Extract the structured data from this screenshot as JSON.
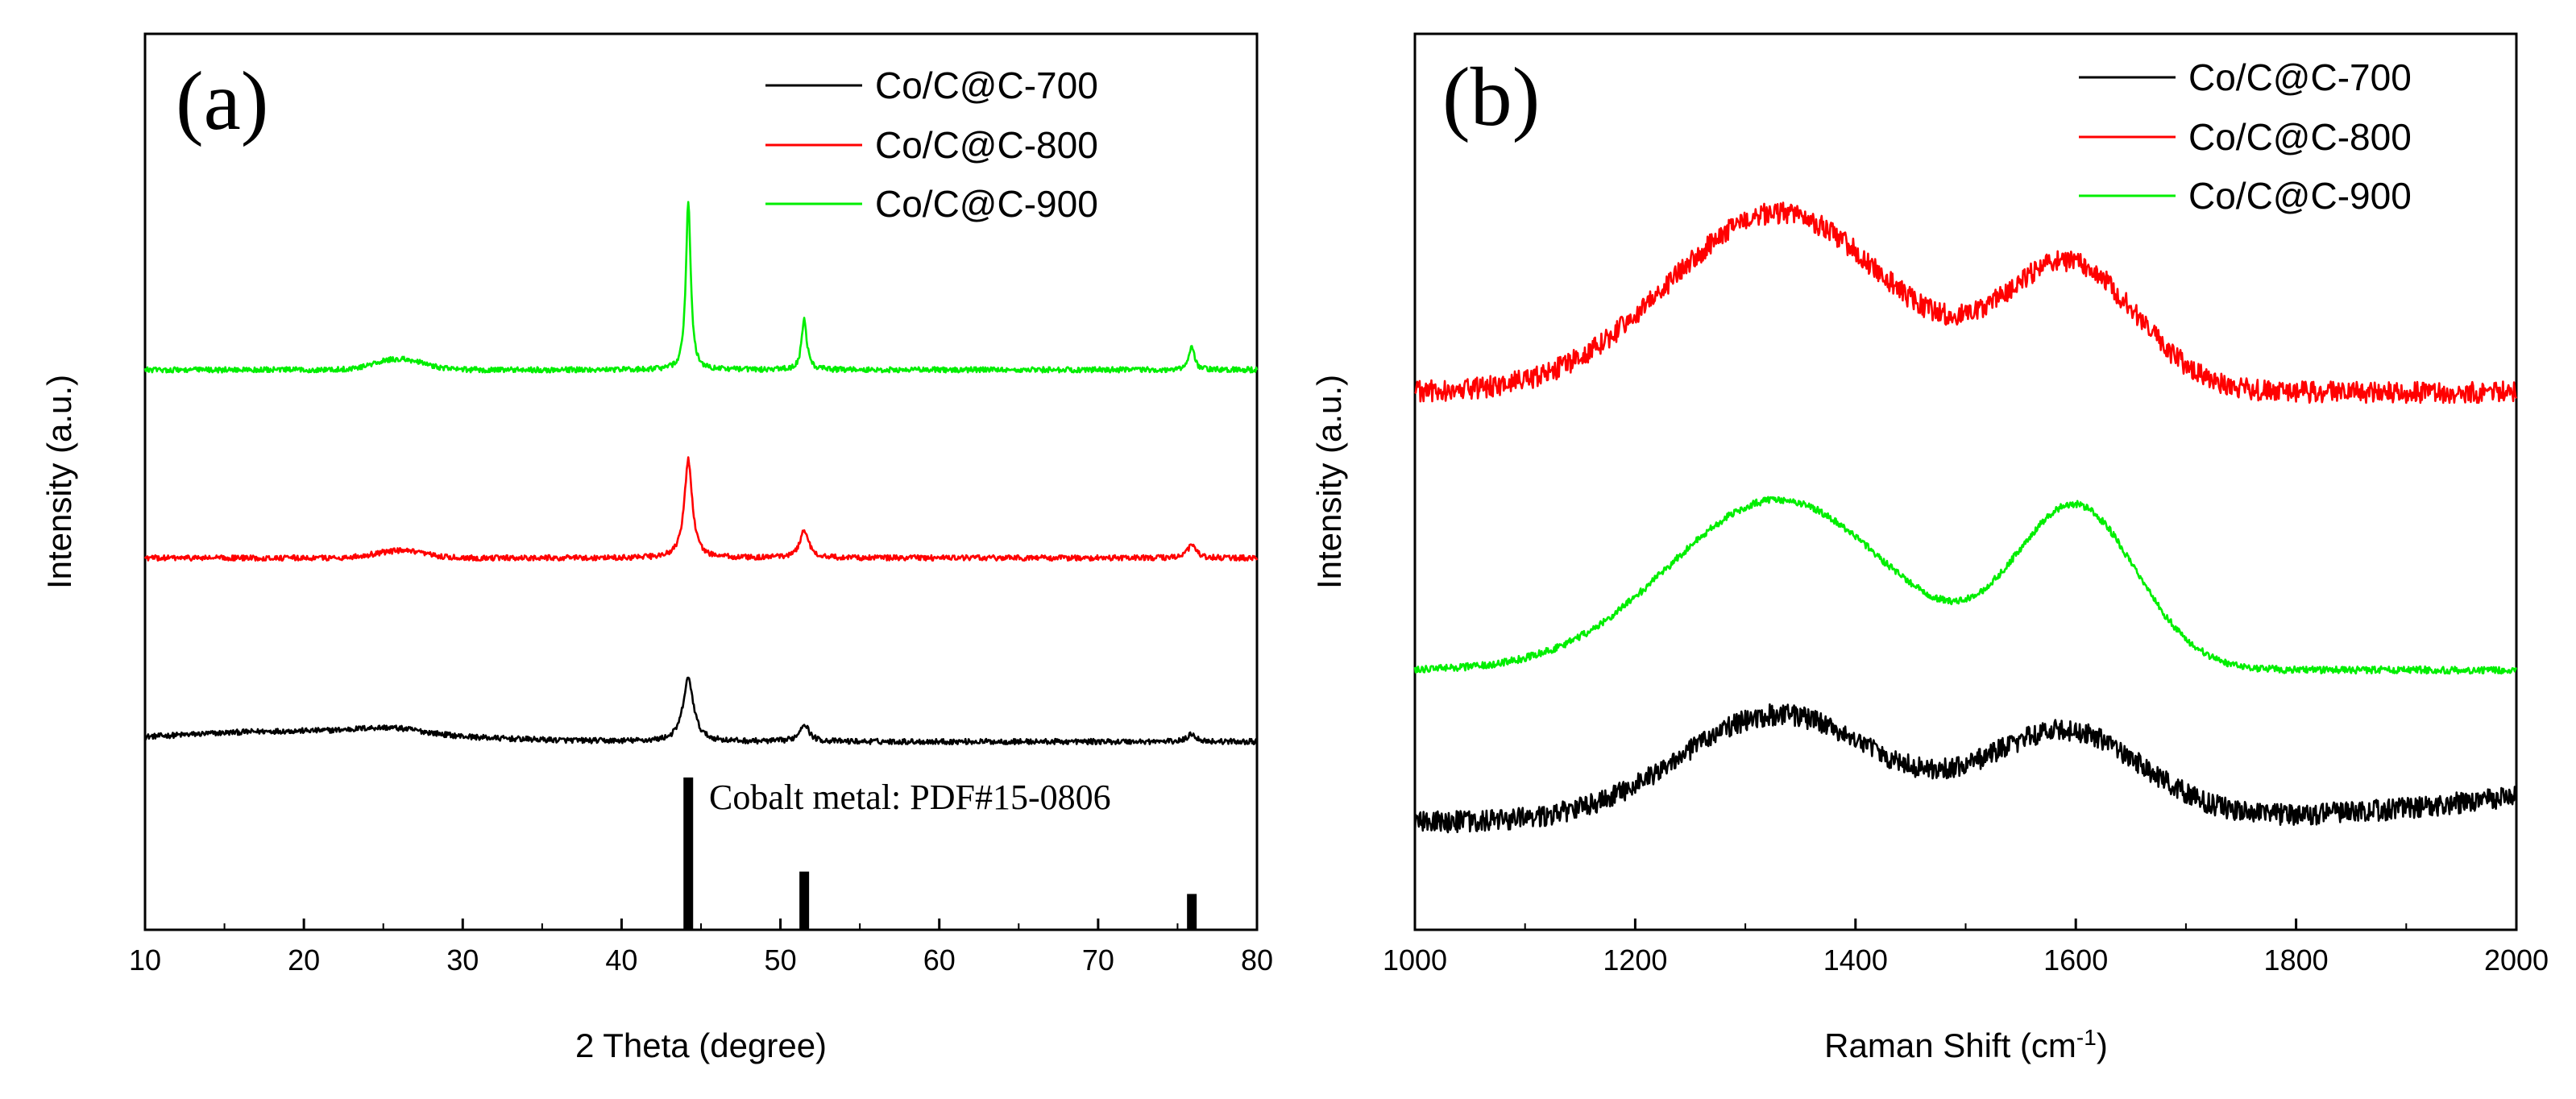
{
  "chart_data": [
    {
      "type": "line",
      "panel_label": "(a)",
      "xlabel": "2 Theta (degree)",
      "ylabel": "Intensity (a.u.)",
      "xlim": [
        10,
        80
      ],
      "x_ticks": [
        10,
        20,
        30,
        40,
        50,
        60,
        70,
        80
      ],
      "legend_position": "top-right",
      "series": [
        {
          "name": "Co/C@C-700",
          "color": "#000000",
          "baseline": 0.21,
          "noise": 0.003,
          "bumps": [
            [
              20,
              8,
              0.012
            ],
            [
              25.5,
              2,
              0.006
            ]
          ],
          "peaks": [
            [
              44.2,
              0.4,
              0.07
            ],
            [
              51.5,
              0.35,
              0.02
            ],
            [
              75.9,
              0.3,
              0.009
            ]
          ]
        },
        {
          "name": "Co/C@C-800",
          "color": "#ff0000",
          "baseline": 0.415,
          "noise": 0.003,
          "bumps": [
            [
              26,
              1.5,
              0.008
            ]
          ],
          "peaks": [
            [
              44.2,
              0.3,
              0.11
            ],
            [
              51.5,
              0.35,
              0.03
            ],
            [
              75.9,
              0.3,
              0.015
            ]
          ]
        },
        {
          "name": "Co/C@C-900",
          "color": "#00ee00",
          "baseline": 0.625,
          "noise": 0.003,
          "bumps": [
            [
              26,
              1.5,
              0.012
            ]
          ],
          "peaks": [
            [
              44.2,
              0.18,
              0.19
            ],
            [
              51.5,
              0.2,
              0.055
            ],
            [
              75.9,
              0.2,
              0.025
            ]
          ]
        }
      ],
      "reference": {
        "label": "Cobalt metal: PDF#15-0806",
        "color": "#000000",
        "lines": [
          [
            44.2,
            0.17
          ],
          [
            51.5,
            0.065
          ],
          [
            75.9,
            0.04
          ]
        ]
      }
    },
    {
      "type": "line",
      "panel_label": "(b)",
      "xlabel": "Raman Shift (cm",
      "xlabel_sup": "-1",
      "xlabel_end": ")",
      "ylabel": "Intensity (a.u.)",
      "xlim": [
        1000,
        2000
      ],
      "x_ticks": [
        1000,
        1200,
        1400,
        1600,
        1800,
        2000
      ],
      "legend_position": "top-right",
      "series": [
        {
          "name": "Co/C@C-700",
          "color": "#000000",
          "baseline": 0.12,
          "noise": 0.012,
          "bands": [
            [
              1330,
              90,
              0.12
            ],
            [
              1590,
              70,
              0.1
            ]
          ],
          "end_rise": 0.03
        },
        {
          "name": "Co/C@C-800",
          "color": "#ff0000",
          "baseline": 0.6,
          "noise": 0.012,
          "bands": [
            [
              1330,
              100,
              0.2
            ],
            [
              1595,
              60,
              0.14
            ]
          ],
          "end_rise": 0
        },
        {
          "name": "Co/C@C-900",
          "color": "#00ee00",
          "baseline": 0.29,
          "noise": 0.004,
          "bands": [
            [
              1330,
              100,
              0.19
            ],
            [
              1600,
              55,
              0.18
            ]
          ],
          "end_rise": 0
        }
      ]
    }
  ]
}
